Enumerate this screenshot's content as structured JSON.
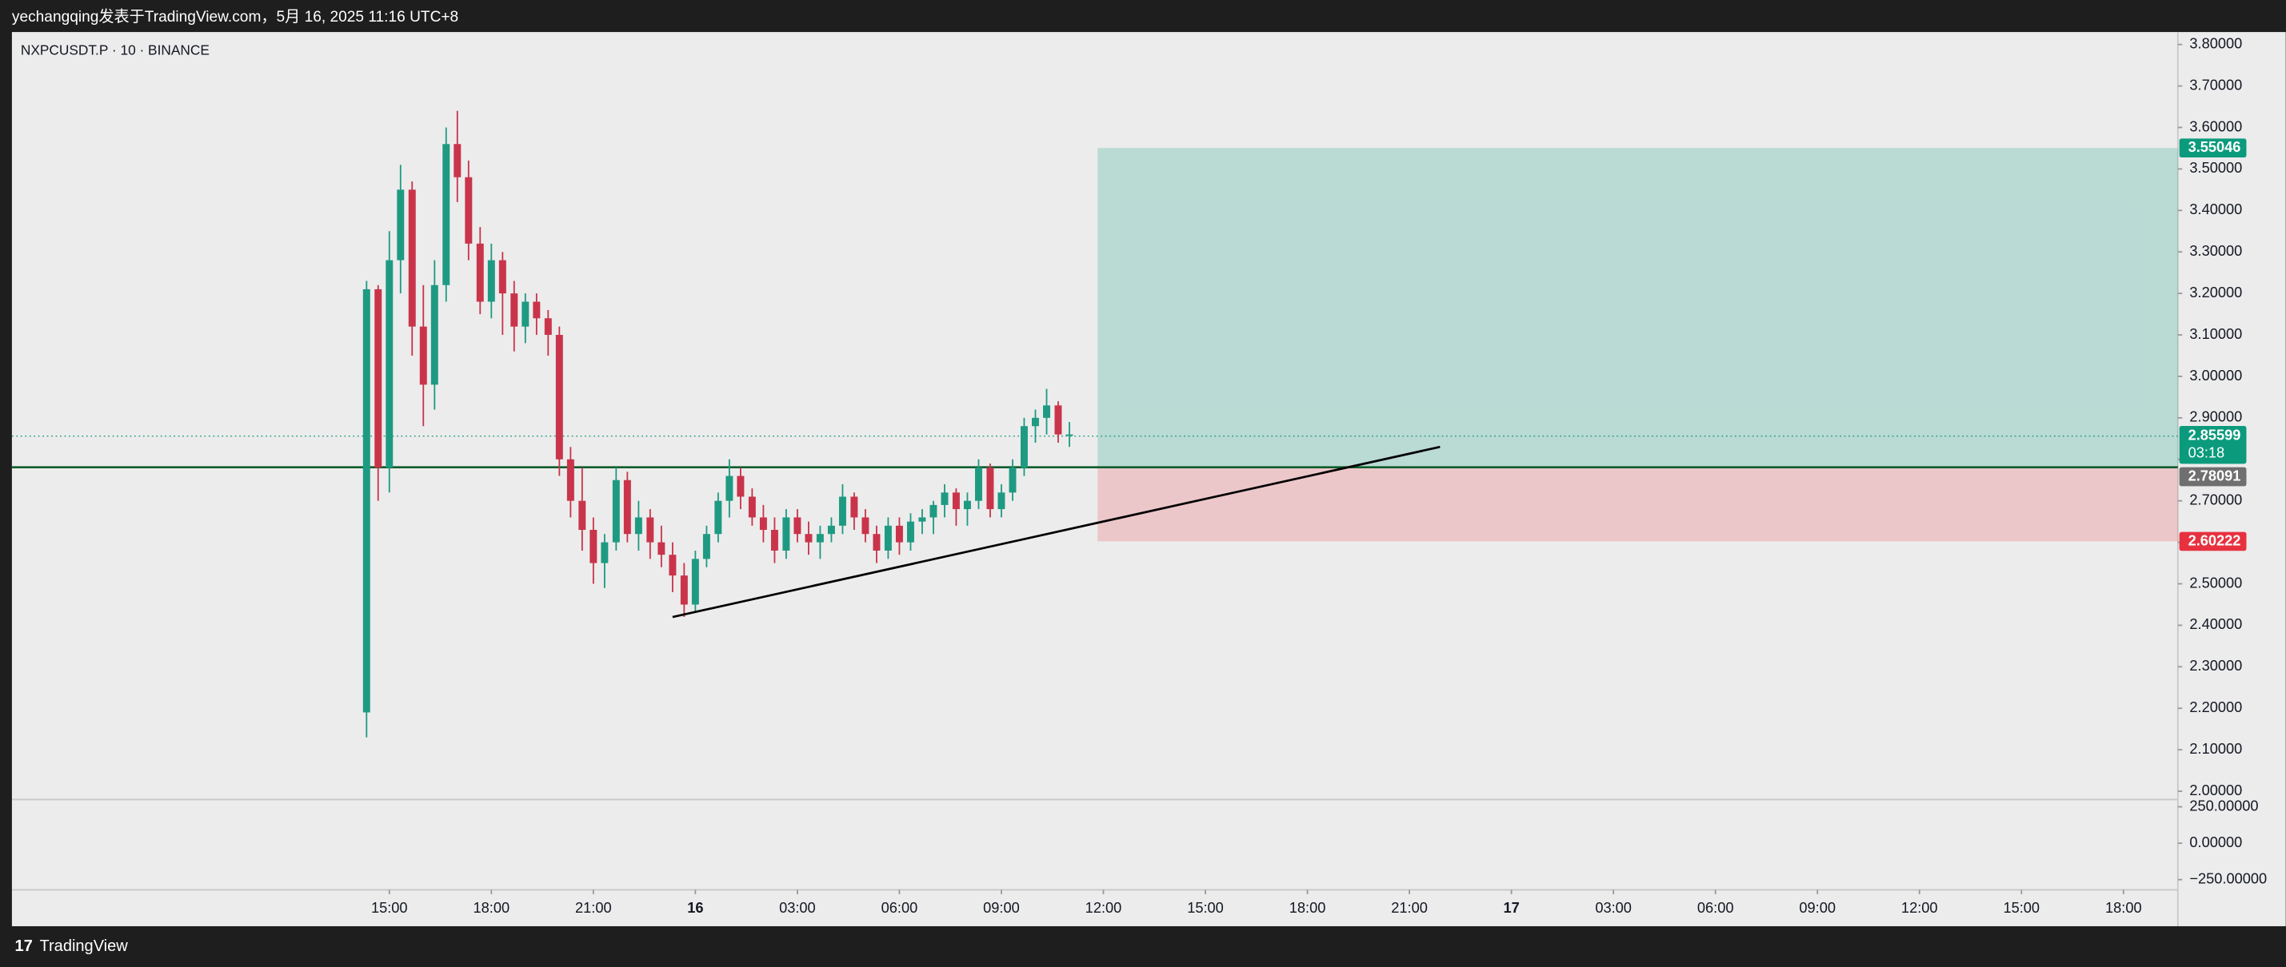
{
  "header": {
    "text": "yechangqing发表于TradingView.com，5月 16, 2025 11:16 UTC+8"
  },
  "footer": {
    "brand": "TradingView"
  },
  "chart_data": {
    "type": "candlestick",
    "title": "NXPCUSDT.P · 10 · BINANCE",
    "up_color": "#1f9a82",
    "down_color": "#c9344a",
    "x": [
      14.33,
      14.67,
      15,
      15.33,
      15.67,
      16,
      16.33,
      16.67,
      17,
      17.33,
      17.67,
      18,
      18.33,
      18.67,
      19,
      19.33,
      19.67,
      20,
      20.33,
      20.67,
      21,
      21.33,
      21.67,
      22,
      22.33,
      22.67,
      23,
      23.33,
      23.67,
      24,
      24.33,
      24.67,
      25,
      25.33,
      25.67,
      26,
      26.33,
      26.67,
      27,
      27.33,
      27.67,
      28,
      28.33,
      28.67,
      29,
      29.33,
      29.67,
      30,
      30.33,
      30.67,
      31,
      31.33,
      31.67,
      32,
      32.33,
      32.67,
      33,
      33.33,
      33.67,
      34,
      34.33,
      34.67,
      35
    ],
    "open": [
      2.19,
      3.21,
      2.78,
      3.28,
      3.45,
      3.12,
      2.98,
      3.22,
      3.56,
      3.48,
      3.32,
      3.18,
      3.28,
      3.2,
      3.12,
      3.18,
      3.14,
      3.1,
      2.8,
      2.7,
      2.63,
      2.55,
      2.6,
      2.75,
      2.62,
      2.66,
      2.6,
      2.57,
      2.52,
      2.45,
      2.56,
      2.62,
      2.7,
      2.76,
      2.71,
      2.66,
      2.63,
      2.58,
      2.66,
      2.62,
      2.6,
      2.62,
      2.64,
      2.71,
      2.66,
      2.62,
      2.58,
      2.64,
      2.6,
      2.65,
      2.66,
      2.69,
      2.72,
      2.68,
      2.7,
      2.78,
      2.68,
      2.72,
      2.78,
      2.88,
      2.9,
      2.93,
      2.86
    ],
    "high": [
      3.23,
      3.22,
      3.35,
      3.51,
      3.47,
      3.22,
      3.28,
      3.6,
      3.64,
      3.52,
      3.36,
      3.32,
      3.3,
      3.23,
      3.2,
      3.2,
      3.16,
      3.12,
      2.83,
      2.78,
      2.66,
      2.62,
      2.78,
      2.77,
      2.7,
      2.68,
      2.64,
      2.6,
      2.55,
      2.58,
      2.64,
      2.72,
      2.8,
      2.78,
      2.73,
      2.69,
      2.66,
      2.68,
      2.68,
      2.65,
      2.64,
      2.66,
      2.74,
      2.72,
      2.68,
      2.64,
      2.66,
      2.66,
      2.67,
      2.68,
      2.7,
      2.74,
      2.73,
      2.72,
      2.8,
      2.79,
      2.74,
      2.8,
      2.9,
      2.92,
      2.97,
      2.94,
      2.89
    ],
    "low": [
      2.13,
      2.7,
      2.72,
      3.2,
      3.05,
      2.88,
      2.92,
      3.18,
      3.42,
      3.28,
      3.15,
      3.14,
      3.1,
      3.06,
      3.08,
      3.1,
      3.05,
      2.76,
      2.66,
      2.58,
      2.5,
      2.49,
      2.58,
      2.6,
      2.58,
      2.56,
      2.54,
      2.48,
      2.42,
      2.43,
      2.54,
      2.6,
      2.66,
      2.68,
      2.64,
      2.6,
      2.55,
      2.56,
      2.6,
      2.57,
      2.56,
      2.6,
      2.62,
      2.63,
      2.6,
      2.55,
      2.56,
      2.57,
      2.58,
      2.62,
      2.62,
      2.66,
      2.64,
      2.64,
      2.68,
      2.66,
      2.66,
      2.7,
      2.76,
      2.84,
      2.86,
      2.84,
      2.83
    ],
    "close": [
      3.21,
      2.78,
      3.28,
      3.45,
      3.12,
      2.98,
      3.22,
      3.56,
      3.48,
      3.32,
      3.18,
      3.28,
      3.2,
      3.12,
      3.18,
      3.14,
      3.1,
      2.8,
      2.7,
      2.63,
      2.55,
      2.6,
      2.75,
      2.62,
      2.66,
      2.6,
      2.57,
      2.52,
      2.45,
      2.56,
      2.62,
      2.7,
      2.76,
      2.71,
      2.66,
      2.63,
      2.58,
      2.66,
      2.62,
      2.6,
      2.62,
      2.64,
      2.71,
      2.66,
      2.62,
      2.58,
      2.64,
      2.6,
      2.65,
      2.66,
      2.69,
      2.72,
      2.68,
      2.7,
      2.78,
      2.68,
      2.72,
      2.78,
      2.88,
      2.9,
      2.93,
      2.86,
      2.86
    ],
    "xlim": [
      3.9,
      67.6
    ],
    "xticks": [
      {
        "value": 15,
        "label": "15:00"
      },
      {
        "value": 18,
        "label": "18:00"
      },
      {
        "value": 21,
        "label": "21:00"
      },
      {
        "value": 24,
        "label": "16"
      },
      {
        "value": 27,
        "label": "03:00"
      },
      {
        "value": 30,
        "label": "06:00"
      },
      {
        "value": 33,
        "label": "09:00"
      },
      {
        "value": 36,
        "label": "12:00"
      },
      {
        "value": 39,
        "label": "15:00"
      },
      {
        "value": 42,
        "label": "18:00"
      },
      {
        "value": 45,
        "label": "21:00"
      },
      {
        "value": 48,
        "label": "17"
      },
      {
        "value": 51,
        "label": "03:00"
      },
      {
        "value": 54,
        "label": "06:00"
      },
      {
        "value": 57,
        "label": "09:00"
      },
      {
        "value": 60,
        "label": "12:00"
      },
      {
        "value": 63,
        "label": "15:00"
      },
      {
        "value": 66,
        "label": "18:00"
      }
    ],
    "ylim": [
      1.98,
      3.83
    ],
    "yticks": [
      {
        "value": 2.0,
        "label": "2.00000"
      },
      {
        "value": 2.1,
        "label": "2.10000"
      },
      {
        "value": 2.2,
        "label": "2.20000"
      },
      {
        "value": 2.3,
        "label": "2.30000"
      },
      {
        "value": 2.4,
        "label": "2.40000"
      },
      {
        "value": 2.5,
        "label": "2.50000"
      },
      {
        "value": 2.6,
        "label": "2.60000"
      },
      {
        "value": 2.7,
        "label": "2.70000"
      },
      {
        "value": 2.8,
        "label": "2.80000"
      },
      {
        "value": 2.9,
        "label": "2.90000"
      },
      {
        "value": 3.0,
        "label": "3.00000"
      },
      {
        "value": 3.1,
        "label": "3.10000"
      },
      {
        "value": 3.2,
        "label": "3.20000"
      },
      {
        "value": 3.3,
        "label": "3.30000"
      },
      {
        "value": 3.4,
        "label": "3.40000"
      },
      {
        "value": 3.5,
        "label": "3.50000"
      },
      {
        "value": 3.6,
        "label": "3.60000"
      },
      {
        "value": 3.7,
        "label": "3.70000"
      },
      {
        "value": 3.8,
        "label": "3.80000"
      }
    ],
    "y2lim": [
      -320,
      300
    ],
    "y2ticks": [
      {
        "value": 250,
        "label": "250.00000"
      },
      {
        "value": 0,
        "label": "0.00000"
      },
      {
        "value": -250,
        "label": "−250.00000"
      }
    ],
    "current_price": 2.85599,
    "countdown": "03:18",
    "position": {
      "x_start": 35.83,
      "entry": 2.78091,
      "target": 3.55046,
      "stop": 2.60222
    },
    "trend_line": {
      "x": [
        23.33,
        45.9
      ],
      "y": [
        2.42,
        2.83
      ]
    }
  }
}
